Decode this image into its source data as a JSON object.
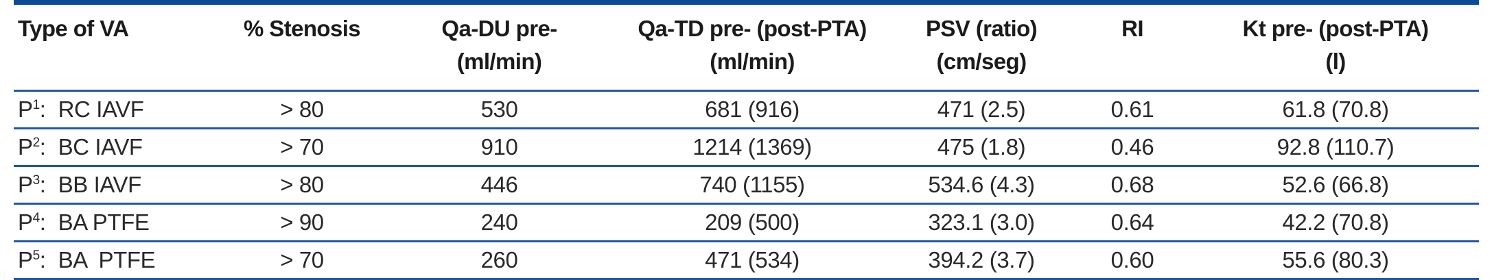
{
  "table": {
    "colors": {
      "rule_heavy": "#0d4a98",
      "rule_light": "#2257a8",
      "header_text": "#1b1b1d",
      "body_text": "#29292b"
    },
    "columns": [
      {
        "line1": "Type of VA",
        "line2": ""
      },
      {
        "line1": "% Stenosis",
        "line2": ""
      },
      {
        "line1": "Qa-DU pre-",
        "line2": "(ml/min)"
      },
      {
        "line1": "Qa-TD pre- (post-PTA)",
        "line2": "(ml/min)"
      },
      {
        "line1": "PSV (ratio)",
        "line2": "(cm/seg)"
      },
      {
        "line1": "RI",
        "line2": ""
      },
      {
        "line1": "Kt pre- (post-PTA)",
        "line2": "(l)"
      }
    ],
    "rows": [
      {
        "p": "P",
        "sup": "1",
        "sep": ":",
        "va": "RC IAVF",
        "stenosis": "> 80",
        "qa_du": "530",
        "qa_td": "681 (916)",
        "psv": "471 (2.5)",
        "ri": "0.61",
        "kt": "61.8 (70.8)"
      },
      {
        "p": "P",
        "sup": "2",
        "sep": ":",
        "va": "BC IAVF",
        "stenosis": "> 70",
        "qa_du": "910",
        "qa_td": "1214 (1369)",
        "psv": "475 (1.8)",
        "ri": "0.46",
        "kt": "92.8 (110.7)"
      },
      {
        "p": "P",
        "sup": "3",
        "sep": ":",
        "va": "BB IAVF",
        "stenosis": "> 80",
        "qa_du": "446",
        "qa_td": "740 (1155)",
        "psv": "534.6 (4.3)",
        "ri": "0.68",
        "kt": "52.6 (66.8)"
      },
      {
        "p": "P",
        "sup": "4",
        "sep": ":",
        "va": "BA PTFE",
        "stenosis": "> 90",
        "qa_du": "240",
        "qa_td": "209 (500)",
        "psv": "323.1 (3.0)",
        "ri": "0.64",
        "kt": "42.2 (70.8)"
      },
      {
        "p": "P",
        "sup": "5",
        "sep": ":",
        "va": "BA  PTFE",
        "stenosis": "> 70",
        "qa_du": "260",
        "qa_td": "471 (534)",
        "psv": "394.2 (3.7)",
        "ri": "0.60",
        "kt": "55.6 (80.3)"
      }
    ]
  }
}
